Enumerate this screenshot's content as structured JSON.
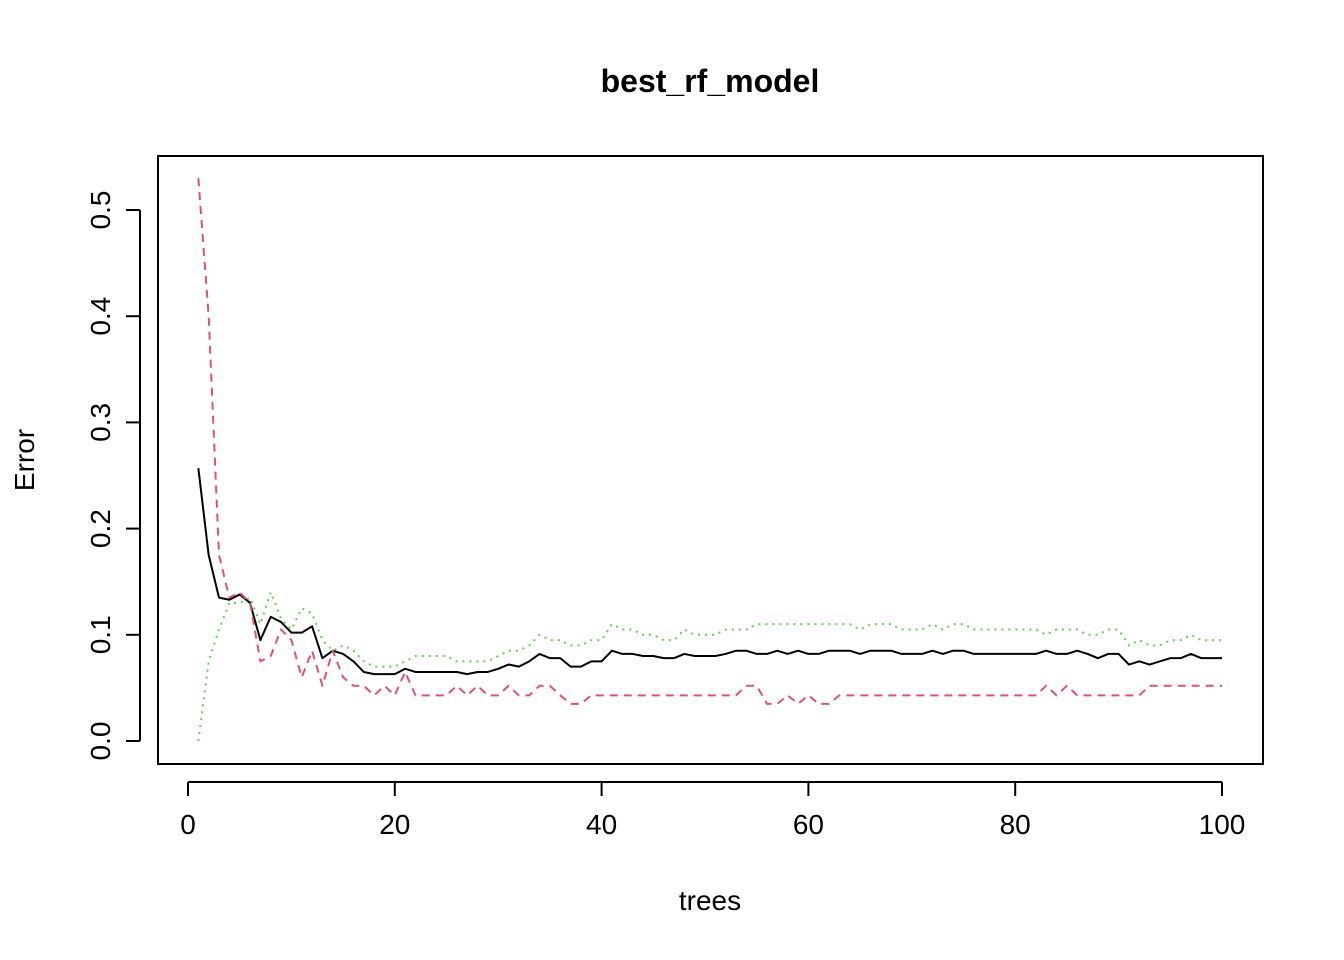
{
  "chart_data": {
    "type": "line",
    "title": "best_rf_model",
    "xlabel": "trees",
    "ylabel": "Error",
    "xlim": [
      0,
      100
    ],
    "ylim": [
      0,
      0.5
    ],
    "x_ticks": [
      0,
      20,
      40,
      60,
      80,
      100
    ],
    "x_tick_labels": [
      "0",
      "20",
      "40",
      "60",
      "80",
      "100"
    ],
    "y_ticks": [
      0.0,
      0.1,
      0.2,
      0.3,
      0.4,
      0.5
    ],
    "y_tick_labels": [
      "0.0",
      "0.1",
      "0.2",
      "0.3",
      "0.4",
      "0.5"
    ],
    "grid": false,
    "legend": "none",
    "x": [
      1,
      2,
      3,
      4,
      5,
      6,
      7,
      8,
      9,
      10,
      11,
      12,
      13,
      14,
      15,
      16,
      17,
      18,
      19,
      20,
      21,
      22,
      23,
      24,
      25,
      26,
      27,
      28,
      29,
      30,
      31,
      32,
      33,
      34,
      35,
      36,
      37,
      38,
      39,
      40,
      41,
      42,
      43,
      44,
      45,
      46,
      47,
      48,
      49,
      50,
      51,
      52,
      53,
      54,
      55,
      56,
      57,
      58,
      59,
      60,
      61,
      62,
      63,
      64,
      65,
      66,
      67,
      68,
      69,
      70,
      71,
      72,
      73,
      74,
      75,
      76,
      77,
      78,
      79,
      80,
      81,
      82,
      83,
      84,
      85,
      86,
      87,
      88,
      89,
      90,
      91,
      92,
      93,
      94,
      95,
      96,
      97,
      98,
      99,
      100
    ],
    "series": [
      {
        "color": "#000000",
        "dash": "solid",
        "values": [
          0.257,
          0.175,
          0.135,
          0.133,
          0.138,
          0.13,
          0.095,
          0.117,
          0.112,
          0.102,
          0.102,
          0.108,
          0.078,
          0.085,
          0.082,
          0.075,
          0.065,
          0.063,
          0.063,
          0.063,
          0.068,
          0.065,
          0.065,
          0.065,
          0.065,
          0.065,
          0.063,
          0.065,
          0.065,
          0.068,
          0.072,
          0.07,
          0.075,
          0.082,
          0.078,
          0.078,
          0.07,
          0.07,
          0.075,
          0.075,
          0.085,
          0.082,
          0.082,
          0.08,
          0.08,
          0.078,
          0.078,
          0.082,
          0.08,
          0.08,
          0.08,
          0.082,
          0.085,
          0.085,
          0.082,
          0.082,
          0.085,
          0.082,
          0.085,
          0.082,
          0.082,
          0.085,
          0.085,
          0.085,
          0.082,
          0.085,
          0.085,
          0.085,
          0.082,
          0.082,
          0.082,
          0.085,
          0.082,
          0.085,
          0.085,
          0.082,
          0.082,
          0.082,
          0.082,
          0.082,
          0.082,
          0.082,
          0.085,
          0.082,
          0.082,
          0.085,
          0.082,
          0.078,
          0.082,
          0.082,
          0.072,
          0.075,
          0.072,
          0.075,
          0.078,
          0.078,
          0.082,
          0.078,
          0.078,
          0.078
        ]
      },
      {
        "color": "#DF536B",
        "dash": "dashed",
        "values": [
          0.53,
          0.4,
          0.175,
          0.135,
          0.14,
          0.13,
          0.075,
          0.08,
          0.105,
          0.095,
          0.06,
          0.085,
          0.052,
          0.085,
          0.06,
          0.052,
          0.052,
          0.043,
          0.052,
          0.043,
          0.065,
          0.043,
          0.043,
          0.043,
          0.043,
          0.052,
          0.043,
          0.052,
          0.043,
          0.043,
          0.052,
          0.043,
          0.043,
          0.052,
          0.052,
          0.043,
          0.035,
          0.035,
          0.043,
          0.043,
          0.043,
          0.043,
          0.043,
          0.043,
          0.043,
          0.043,
          0.043,
          0.043,
          0.043,
          0.043,
          0.043,
          0.043,
          0.043,
          0.052,
          0.052,
          0.035,
          0.035,
          0.043,
          0.035,
          0.043,
          0.035,
          0.035,
          0.043,
          0.043,
          0.043,
          0.043,
          0.043,
          0.043,
          0.043,
          0.043,
          0.043,
          0.043,
          0.043,
          0.043,
          0.043,
          0.043,
          0.043,
          0.043,
          0.043,
          0.043,
          0.043,
          0.043,
          0.052,
          0.043,
          0.052,
          0.043,
          0.043,
          0.043,
          0.043,
          0.043,
          0.043,
          0.043,
          0.052,
          0.052,
          0.052,
          0.052,
          0.052,
          0.052,
          0.052,
          0.052
        ]
      },
      {
        "color": "#61D04F",
        "dash": "dotted",
        "values": [
          0.0,
          0.075,
          0.105,
          0.13,
          0.13,
          0.135,
          0.11,
          0.14,
          0.115,
          0.105,
          0.125,
          0.12,
          0.095,
          0.085,
          0.09,
          0.085,
          0.075,
          0.07,
          0.07,
          0.07,
          0.075,
          0.08,
          0.08,
          0.08,
          0.08,
          0.075,
          0.075,
          0.075,
          0.075,
          0.08,
          0.085,
          0.085,
          0.09,
          0.1,
          0.095,
          0.095,
          0.09,
          0.09,
          0.095,
          0.095,
          0.11,
          0.105,
          0.105,
          0.1,
          0.1,
          0.095,
          0.095,
          0.105,
          0.1,
          0.1,
          0.1,
          0.105,
          0.105,
          0.105,
          0.11,
          0.11,
          0.11,
          0.11,
          0.11,
          0.11,
          0.11,
          0.11,
          0.11,
          0.11,
          0.105,
          0.11,
          0.11,
          0.11,
          0.105,
          0.105,
          0.105,
          0.11,
          0.105,
          0.11,
          0.11,
          0.105,
          0.105,
          0.105,
          0.105,
          0.105,
          0.105,
          0.105,
          0.1,
          0.105,
          0.105,
          0.105,
          0.1,
          0.1,
          0.105,
          0.105,
          0.09,
          0.095,
          0.09,
          0.09,
          0.095,
          0.095,
          0.1,
          0.095,
          0.095,
          0.095
        ]
      }
    ]
  }
}
